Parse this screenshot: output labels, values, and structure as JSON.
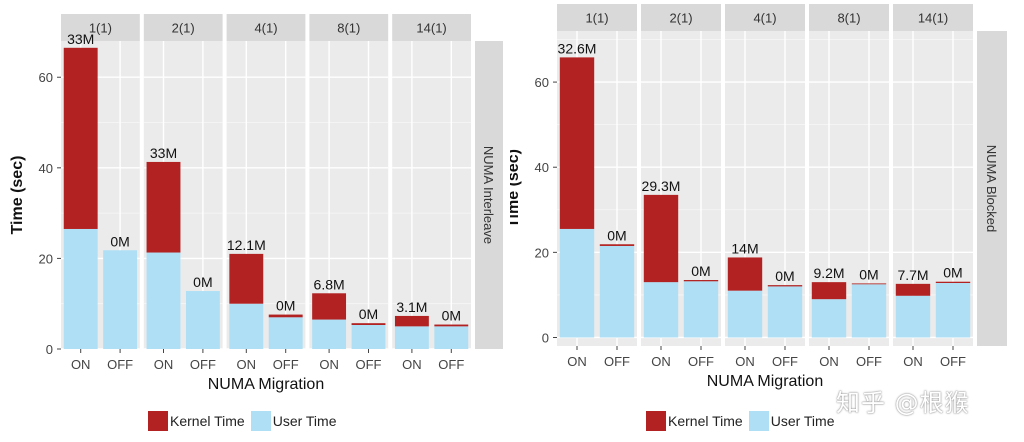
{
  "colors": {
    "kernel": "#b22222",
    "user": "#aedff5",
    "strip": "#d9d9d9",
    "panel": "#ebebeb"
  },
  "watermark": "知乎 @根猴",
  "chart_data": [
    {
      "type": "bar",
      "stacked": true,
      "facet_label": "1(1)|2(1)|4(1)|8(1)|14(1)",
      "row_label": "NUMA Interleave",
      "xlabel": "NUMA Migration",
      "ylabel": "Time (sec)",
      "ylim": [
        0,
        68
      ],
      "yticks": [
        0,
        20,
        40,
        60
      ],
      "facets": [
        "1(1)",
        "2(1)",
        "4(1)",
        "8(1)",
        "14(1)"
      ],
      "categories": [
        "ON",
        "OFF"
      ],
      "series_names": [
        "Kernel Time",
        "User Time"
      ],
      "bars": [
        [
          {
            "user": 26.5,
            "kernel": 40.0,
            "label": "33M"
          },
          {
            "user": 21.8,
            "kernel": 0.0,
            "label": "0M"
          }
        ],
        [
          {
            "user": 21.3,
            "kernel": 20.0,
            "label": "33M"
          },
          {
            "user": 12.8,
            "kernel": 0.0,
            "label": "0M"
          }
        ],
        [
          {
            "user": 10.0,
            "kernel": 11.0,
            "label": "12.1M"
          },
          {
            "user": 7.0,
            "kernel": 0.6,
            "label": "0M"
          }
        ],
        [
          {
            "user": 6.5,
            "kernel": 5.8,
            "label": "6.8M"
          },
          {
            "user": 5.3,
            "kernel": 0.4,
            "label": "0M"
          }
        ],
        [
          {
            "user": 5.0,
            "kernel": 2.3,
            "label": "3.1M"
          },
          {
            "user": 5.0,
            "kernel": 0.4,
            "label": "0M"
          }
        ]
      ],
      "legend": [
        "Kernel Time",
        "User Time"
      ]
    },
    {
      "type": "bar",
      "stacked": true,
      "row_label": "NUMA Blocked",
      "xlabel": "NUMA Migration",
      "ylabel": "Time (sec)",
      "ylim": [
        -2,
        72
      ],
      "yticks": [
        0,
        20,
        40,
        60
      ],
      "facets": [
        "1(1)",
        "2(1)",
        "4(1)",
        "8(1)",
        "14(1)"
      ],
      "categories": [
        "ON",
        "OFF"
      ],
      "series_names": [
        "Kernel Time",
        "User Time"
      ],
      "bars": [
        [
          {
            "user": 25.5,
            "kernel": 40.3,
            "label": "32.6M"
          },
          {
            "user": 21.5,
            "kernel": 0.4,
            "label": "0M"
          }
        ],
        [
          {
            "user": 13.0,
            "kernel": 20.5,
            "label": "29.3M"
          },
          {
            "user": 13.2,
            "kernel": 0.3,
            "label": "0M"
          }
        ],
        [
          {
            "user": 11.0,
            "kernel": 7.8,
            "label": "14M"
          },
          {
            "user": 12.0,
            "kernel": 0.3,
            "label": "0M"
          }
        ],
        [
          {
            "user": 9.0,
            "kernel": 4.0,
            "label": "9.2M"
          },
          {
            "user": 12.5,
            "kernel": 0.2,
            "label": "0M"
          }
        ],
        [
          {
            "user": 9.8,
            "kernel": 2.8,
            "label": "7.7M"
          },
          {
            "user": 12.8,
            "kernel": 0.3,
            "label": "0M"
          }
        ]
      ],
      "legend": [
        "Kernel Time",
        "User Time"
      ]
    }
  ]
}
